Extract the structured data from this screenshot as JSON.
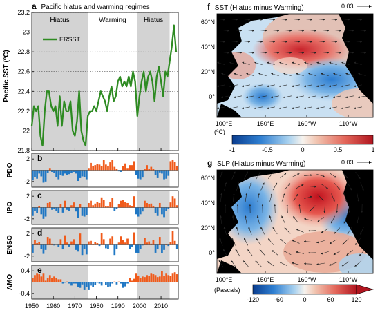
{
  "chart_data": [
    {
      "panel": "a",
      "type": "line",
      "title": "Pacific hiatus and warming regimes",
      "ylabel": "Pacific SST (°C)",
      "xlim": [
        1950,
        2018
      ],
      "ylim": [
        21.8,
        23.2
      ],
      "yticks": [
        "21.8",
        "22",
        "22.2",
        "22.4",
        "22.6",
        "22.8",
        "23",
        "23.2"
      ],
      "xticks": [
        "1950",
        "1960",
        "1970",
        "1980",
        "1990",
        "2000",
        "2010"
      ],
      "regimes": [
        {
          "label": "Hiatus",
          "start": 1950,
          "end": 1976,
          "shaded": true
        },
        {
          "label": "Warming",
          "start": 1976,
          "end": 1999,
          "shaded": false
        },
        {
          "label": "Hiatus",
          "start": 1999,
          "end": 2014,
          "shaded": true
        }
      ],
      "series": [
        {
          "name": "ERSST",
          "color": "#2e8b22",
          "x": [
            1950,
            1951,
            1952,
            1953,
            1954,
            1955,
            1956,
            1957,
            1958,
            1959,
            1960,
            1961,
            1962,
            1963,
            1964,
            1965,
            1966,
            1967,
            1968,
            1969,
            1970,
            1971,
            1972,
            1973,
            1974,
            1975,
            1976,
            1977,
            1978,
            1979,
            1980,
            1981,
            1982,
            1983,
            1984,
            1985,
            1986,
            1987,
            1988,
            1989,
            1990,
            1991,
            1992,
            1993,
            1994,
            1995,
            1996,
            1997,
            1998,
            1999,
            2000,
            2001,
            2002,
            2003,
            2004,
            2005,
            2006,
            2007,
            2008,
            2009,
            2010,
            2011,
            2012,
            2013,
            2014,
            2015,
            2016,
            2017
          ],
          "values": [
            22.05,
            22.25,
            22.2,
            22.25,
            21.95,
            21.85,
            22.2,
            22.4,
            22.4,
            22.25,
            22.2,
            22.25,
            22.05,
            22.35,
            22.05,
            22.3,
            22.2,
            22.2,
            22.3,
            22.0,
            21.95,
            22.1,
            22.4,
            22.0,
            21.9,
            21.85,
            22.15,
            22.2,
            22.2,
            22.25,
            22.2,
            22.3,
            22.4,
            22.35,
            22.3,
            22.2,
            22.35,
            22.45,
            22.3,
            22.35,
            22.5,
            22.55,
            22.45,
            22.5,
            22.45,
            22.55,
            22.45,
            22.6,
            22.5,
            22.15,
            22.35,
            22.5,
            22.6,
            22.4,
            22.55,
            22.6,
            22.5,
            22.3,
            22.55,
            22.65,
            22.5,
            22.35,
            22.6,
            22.55,
            22.7,
            22.85,
            23.07,
            22.8
          ]
        }
      ]
    },
    {
      "panel": "b",
      "type": "bar",
      "ylabel": "PDO",
      "yticks": [
        "2",
        "-2"
      ],
      "ylim": [
        -3,
        3
      ],
      "pos_color": "#f05a1a",
      "neg_color": "#1f77c4",
      "x": [
        1950,
        1951,
        1952,
        1953,
        1954,
        1955,
        1956,
        1957,
        1958,
        1959,
        1960,
        1961,
        1962,
        1963,
        1964,
        1965,
        1966,
        1967,
        1968,
        1969,
        1970,
        1971,
        1972,
        1973,
        1974,
        1975,
        1976,
        1977,
        1978,
        1979,
        1980,
        1981,
        1982,
        1983,
        1984,
        1985,
        1986,
        1987,
        1988,
        1989,
        1990,
        1991,
        1992,
        1993,
        1994,
        1995,
        1996,
        1997,
        1998,
        1999,
        2000,
        2001,
        2002,
        2003,
        2004,
        2005,
        2006,
        2007,
        2008,
        2009,
        2010,
        2011,
        2012,
        2013,
        2014,
        2015,
        2016,
        2017
      ],
      "values": [
        -1.8,
        -1.2,
        -1.5,
        -0.6,
        -1.1,
        -2.2,
        -2.0,
        -0.5,
        0.4,
        -0.3,
        -0.5,
        -1.2,
        -1.6,
        -0.8,
        -1.0,
        -0.6,
        -0.9,
        -0.7,
        -0.5,
        -0.3,
        -0.6,
        -1.9,
        -1.4,
        -1.1,
        -1.2,
        -1.6,
        0.4,
        1.3,
        0.8,
        0.9,
        1.1,
        1.0,
        0.7,
        1.8,
        1.0,
        0.8,
        1.4,
        1.8,
        0.6,
        0.3,
        -0.2,
        -0.3,
        0.7,
        1.2,
        0.4,
        0.9,
        0.9,
        1.6,
        -0.8,
        -1.5,
        -1.6,
        -1.3,
        0.2,
        0.9,
        0.3,
        0.6,
        0.2,
        -0.9,
        -1.4,
        -0.4,
        -0.6,
        -1.6,
        -1.5,
        -1.0,
        1.6,
        1.9,
        1.5,
        0.8
      ]
    },
    {
      "panel": "c",
      "type": "bar",
      "ylabel": "IPO",
      "yticks": [
        "2",
        "-2"
      ],
      "ylim": [
        -3,
        3
      ],
      "pos_color": "#f05a1a",
      "neg_color": "#1f77c4",
      "x": [
        1950,
        1951,
        1952,
        1953,
        1954,
        1955,
        1956,
        1957,
        1958,
        1959,
        1960,
        1961,
        1962,
        1963,
        1964,
        1965,
        1966,
        1967,
        1968,
        1969,
        1970,
        1971,
        1972,
        1973,
        1974,
        1975,
        1976,
        1977,
        1978,
        1979,
        1980,
        1981,
        1982,
        1983,
        1984,
        1985,
        1986,
        1987,
        1988,
        1989,
        1990,
        1991,
        1992,
        1993,
        1994,
        1995,
        1996,
        1997,
        1998,
        1999,
        2000,
        2001,
        2002,
        2003,
        2004,
        2005,
        2006,
        2007,
        2008,
        2009,
        2010,
        2011,
        2012,
        2013,
        2014,
        2015,
        2016,
        2017
      ],
      "values": [
        -1.5,
        -0.6,
        -1.0,
        0.3,
        -1.2,
        -2.0,
        -1.6,
        0.8,
        1.0,
        -0.4,
        -0.3,
        -0.6,
        -1.0,
        0.6,
        -0.9,
        1.2,
        -0.4,
        -0.6,
        0.4,
        0.9,
        -0.7,
        -1.8,
        0.6,
        -1.5,
        -1.6,
        -1.4,
        0.8,
        1.2,
        0.4,
        0.7,
        1.0,
        0.8,
        1.8,
        1.4,
        0.3,
        0.2,
        1.0,
        1.7,
        -0.6,
        -0.2,
        0.6,
        1.2,
        1.4,
        1.0,
        0.8,
        0.4,
        0.2,
        2.0,
        -1.2,
        -1.6,
        -1.2,
        -0.7,
        1.2,
        0.8,
        0.6,
        0.7,
        0.2,
        -1.0,
        -1.5,
        0.8,
        -1.2,
        -1.7,
        -0.6,
        -0.3,
        0.9,
        2.0,
        1.6,
        0.4
      ]
    },
    {
      "panel": "d",
      "type": "bar",
      "ylabel": "ENSO",
      "yticks": [
        "2",
        "-2"
      ],
      "ylim": [
        -3,
        3
      ],
      "pos_color": "#f05a1a",
      "neg_color": "#1f77c4",
      "x": [
        1950,
        1951,
        1952,
        1953,
        1954,
        1955,
        1956,
        1957,
        1958,
        1959,
        1960,
        1961,
        1962,
        1963,
        1964,
        1965,
        1966,
        1967,
        1968,
        1969,
        1970,
        1971,
        1972,
        1973,
        1974,
        1975,
        1976,
        1977,
        1978,
        1979,
        1980,
        1981,
        1982,
        1983,
        1984,
        1985,
        1986,
        1987,
        1988,
        1989,
        1990,
        1991,
        1992,
        1993,
        1994,
        1995,
        1996,
        1997,
        1998,
        1999,
        2000,
        2001,
        2002,
        2003,
        2004,
        2005,
        2006,
        2007,
        2008,
        2009,
        2010,
        2011,
        2012,
        2013,
        2014,
        2015,
        2016,
        2017
      ],
      "values": [
        -1.4,
        0.8,
        0.3,
        0.5,
        -0.8,
        -1.6,
        -0.9,
        1.4,
        1.1,
        0.2,
        -0.1,
        0.0,
        -0.4,
        1.0,
        -0.8,
        1.7,
        0.4,
        -0.3,
        0.6,
        1.0,
        -0.9,
        -1.2,
        2.0,
        -1.8,
        -0.8,
        -1.7,
        0.6,
        0.7,
        0.1,
        0.5,
        0.3,
        -0.2,
        2.1,
        1.0,
        -0.6,
        -0.7,
        1.1,
        1.5,
        -1.8,
        -0.8,
        0.4,
        1.5,
        0.8,
        0.4,
        1.1,
        -0.7,
        -0.3,
        2.2,
        -1.4,
        -1.5,
        -0.7,
        -0.1,
        1.2,
        0.4,
        0.6,
        0.2,
        0.8,
        -1.4,
        -0.8,
        1.4,
        -1.5,
        -0.9,
        0.1,
        -0.2,
        0.5,
        2.4,
        0.7,
        -0.7
      ]
    },
    {
      "panel": "e",
      "type": "bar",
      "ylabel": "AMO",
      "yticks": [
        "0.4",
        "-0.4"
      ],
      "ylim": [
        -0.6,
        0.6
      ],
      "pos_color": "#f05a1a",
      "neg_color": "#1f77c4",
      "x": [
        1950,
        1951,
        1952,
        1953,
        1954,
        1955,
        1956,
        1957,
        1958,
        1959,
        1960,
        1961,
        1962,
        1963,
        1964,
        1965,
        1966,
        1967,
        1968,
        1969,
        1970,
        1971,
        1972,
        1973,
        1974,
        1975,
        1976,
        1977,
        1978,
        1979,
        1980,
        1981,
        1982,
        1983,
        1984,
        1985,
        1986,
        1987,
        1988,
        1989,
        1990,
        1991,
        1992,
        1993,
        1994,
        1995,
        1996,
        1997,
        1998,
        1999,
        2000,
        2001,
        2002,
        2003,
        2004,
        2005,
        2006,
        2007,
        2008,
        2009,
        2010,
        2011,
        2012,
        2013,
        2014,
        2015,
        2016,
        2017
      ],
      "values": [
        0.15,
        0.25,
        0.3,
        0.28,
        0.2,
        0.3,
        0.05,
        0.15,
        0.25,
        0.15,
        0.2,
        0.15,
        0.1,
        0.1,
        -0.05,
        -0.02,
        0.02,
        -0.05,
        -0.12,
        -0.05,
        -0.05,
        -0.18,
        -0.2,
        -0.08,
        -0.28,
        -0.18,
        -0.28,
        -0.12,
        -0.18,
        -0.1,
        -0.02,
        -0.05,
        -0.12,
        0.0,
        -0.1,
        -0.18,
        -0.15,
        -0.05,
        0.02,
        -0.08,
        0.02,
        -0.05,
        -0.2,
        -0.15,
        -0.05,
        0.15,
        0.05,
        0.12,
        0.3,
        0.22,
        0.15,
        0.2,
        0.18,
        0.25,
        0.22,
        0.3,
        0.28,
        0.25,
        0.18,
        0.2,
        0.38,
        0.22,
        0.3,
        0.25,
        0.22,
        0.3,
        0.35,
        0.28
      ]
    },
    {
      "panel": "f",
      "type": "heatmap",
      "title": "SST (Hiatus minus Warming)",
      "vector_scale": "0.03",
      "colorbar": {
        "label": "(°C)",
        "ticks": [
          "-1",
          "-0.5",
          "0",
          "0.5",
          "1"
        ],
        "range": [
          -1,
          1
        ]
      },
      "lat_ticks": [
        "60°N",
        "40°N",
        "20°N",
        "0°"
      ],
      "lon_ticks": [
        "100°E",
        "150°E",
        "160°W",
        "110°W"
      ]
    },
    {
      "panel": "g",
      "type": "heatmap",
      "title": "SLP (Hiatus minus Warming)",
      "vector_scale": "0.03",
      "colorbar": {
        "label": "(Pascals)",
        "ticks": [
          "-120",
          "-60",
          "0",
          "60",
          "120"
        ],
        "range": [
          -120,
          120
        ]
      },
      "lat_ticks": [
        "60°N",
        "40°N",
        "20°N",
        "0°"
      ],
      "lon_ticks": [
        "100°E",
        "150°E",
        "160°W",
        "110°W"
      ]
    }
  ]
}
